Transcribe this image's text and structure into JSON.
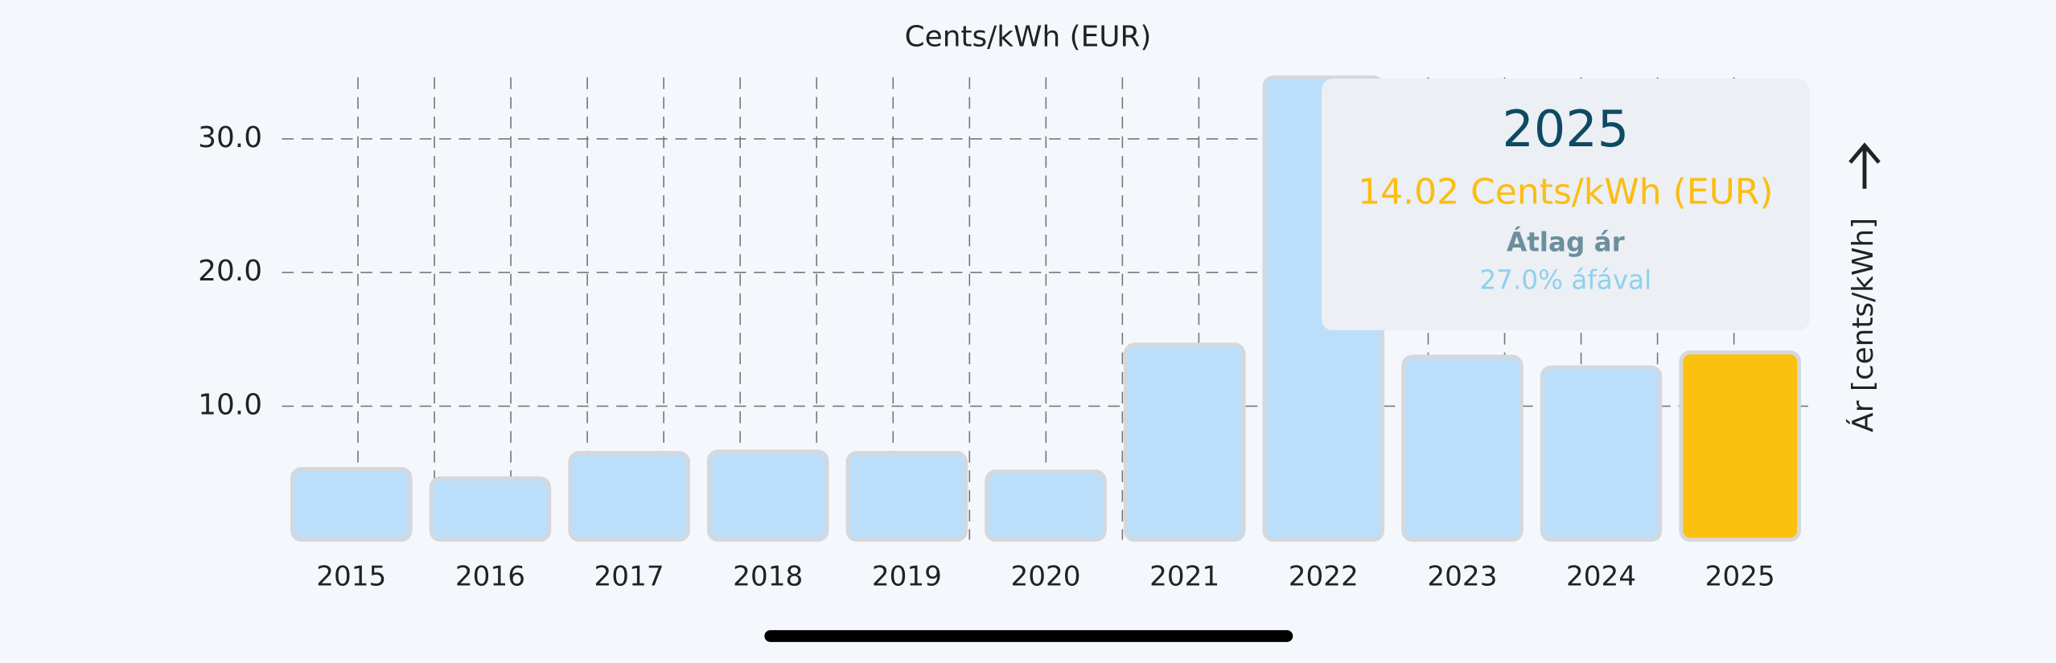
{
  "chart_data": {
    "type": "bar",
    "title": "Cents/kWh (EUR)",
    "y_label": "Ár [cents/kWh]",
    "categories": [
      "2015",
      "2016",
      "2017",
      "2018",
      "2019",
      "2020",
      "2021",
      "2022",
      "2023",
      "2024",
      "2025"
    ],
    "values": [
      5.3,
      4.6,
      6.5,
      6.6,
      6.5,
      5.1,
      14.6,
      34.6,
      13.7,
      12.9,
      14.02
    ],
    "colors": [
      "#bbdefb",
      "#bbdefb",
      "#bbdefb",
      "#bbdefb",
      "#bbdefb",
      "#bbdefb",
      "#bbdefb",
      "#bbdefb",
      "#bbdefb",
      "#bbdefb",
      "#fcc10f"
    ],
    "ylim": [
      0,
      34.6
    ],
    "yticks": [
      {
        "value": 10,
        "label": "10.0"
      },
      {
        "value": 20,
        "label": "20.0"
      },
      {
        "value": 30,
        "label": "30.0"
      }
    ],
    "grid": true,
    "tooltip": {
      "title": "2025",
      "value": "14.02 Cents/kWh (EUR)",
      "label": "Átlag ár",
      "note": "27.0% áfával"
    }
  }
}
